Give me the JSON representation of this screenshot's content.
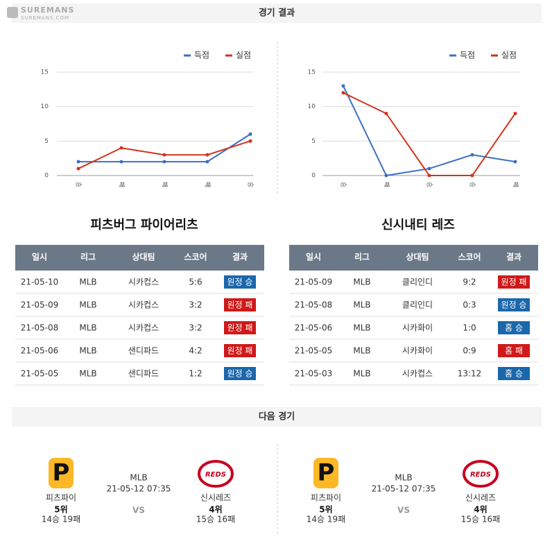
{
  "watermark": {
    "brand": "SUREMANS",
    "site": "SUREMANS.COM"
  },
  "header": {
    "title": "경기 결과"
  },
  "chart_data": [
    {
      "type": "line",
      "categories": [
        "승",
        "패",
        "패",
        "패",
        "승"
      ],
      "series": [
        {
          "name": "득점",
          "color": "#3b6fc4",
          "values": [
            2,
            2,
            2,
            2,
            6
          ]
        },
        {
          "name": "실점",
          "color": "#d4321c",
          "values": [
            1,
            4,
            3,
            3,
            5
          ]
        }
      ],
      "ylim": [
        0,
        15
      ],
      "yticks": [
        0,
        5,
        10,
        15
      ],
      "grid": true,
      "legend": "top-right"
    },
    {
      "type": "line",
      "categories": [
        "승",
        "패",
        "승",
        "승",
        "패"
      ],
      "series": [
        {
          "name": "득점",
          "color": "#3b6fc4",
          "values": [
            13,
            0,
            1,
            3,
            2
          ]
        },
        {
          "name": "실점",
          "color": "#d4321c",
          "values": [
            12,
            9,
            0,
            0,
            9
          ]
        }
      ],
      "ylim": [
        0,
        15
      ],
      "yticks": [
        0,
        5,
        10,
        15
      ],
      "grid": true,
      "legend": "top-right"
    }
  ],
  "tables": [
    {
      "title": "피츠버그 파이어리츠",
      "header": [
        "일시",
        "리그",
        "상대팀",
        "스코어",
        "결과"
      ],
      "rows": [
        {
          "cells": [
            "21-05-10",
            "MLB",
            "시카컵스",
            "5:6",
            "원정 승"
          ],
          "result_color": "#1b67ab"
        },
        {
          "cells": [
            "21-05-09",
            "MLB",
            "시카컵스",
            "3:2",
            "원정 패"
          ],
          "result_color": "#d01818"
        },
        {
          "cells": [
            "21-05-08",
            "MLB",
            "시카컵스",
            "3:2",
            "원정 패"
          ],
          "result_color": "#d01818"
        },
        {
          "cells": [
            "21-05-06",
            "MLB",
            "샌디파드",
            "4:2",
            "원정 패"
          ],
          "result_color": "#d01818"
        },
        {
          "cells": [
            "21-05-05",
            "MLB",
            "샌디파드",
            "1:2",
            "원정 승"
          ],
          "result_color": "#1b67ab"
        }
      ]
    },
    {
      "title": "신시내티 레즈",
      "header": [
        "일시",
        "리그",
        "상대팀",
        "스코어",
        "결과"
      ],
      "rows": [
        {
          "cells": [
            "21-05-09",
            "MLB",
            "클리인디",
            "9:2",
            "원정 패"
          ],
          "result_color": "#d01818"
        },
        {
          "cells": [
            "21-05-08",
            "MLB",
            "클리인디",
            "0:3",
            "원정 승"
          ],
          "result_color": "#1b67ab"
        },
        {
          "cells": [
            "21-05-06",
            "MLB",
            "시카화이",
            "1:0",
            "홈 승"
          ],
          "result_color": "#1b67ab"
        },
        {
          "cells": [
            "21-05-05",
            "MLB",
            "시카화이",
            "0:9",
            "홈 패"
          ],
          "result_color": "#d01818"
        },
        {
          "cells": [
            "21-05-03",
            "MLB",
            "시카컵스",
            "13:12",
            "홈 승"
          ],
          "result_color": "#1b67ab"
        }
      ]
    }
  ],
  "next_game": {
    "title": "다음 경기",
    "games": [
      {
        "home": {
          "logo": "P",
          "name": "피츠파이",
          "rank": "5위",
          "record": "14승 19패"
        },
        "league": "MLB",
        "datetime": "21-05-12 07:35",
        "vs": "VS",
        "away": {
          "logo": "REDS",
          "name": "신시레즈",
          "rank": "4위",
          "record": "15승 16패"
        }
      },
      {
        "home": {
          "logo": "P",
          "name": "피츠파이",
          "rank": "5위",
          "record": "14승 19패"
        },
        "league": "MLB",
        "datetime": "21-05-12 07:35",
        "vs": "VS",
        "away": {
          "logo": "REDS",
          "name": "신시레즈",
          "rank": "4위",
          "record": "15승 16패"
        }
      }
    ]
  }
}
